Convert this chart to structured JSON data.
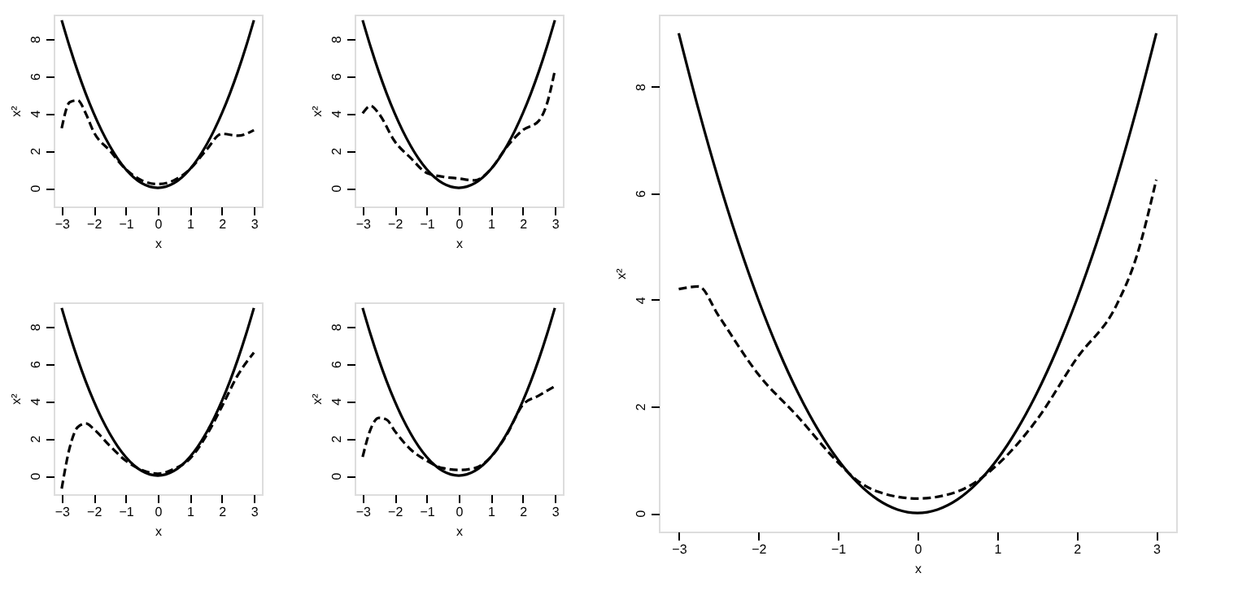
{
  "chart_data": [
    {
      "type": "line",
      "xlabel": "x",
      "ylabel": "x²",
      "xlim": [
        -3.25,
        3.25
      ],
      "ylim": [
        -1,
        9.3
      ],
      "xticks": [
        -3,
        -2,
        -1,
        0,
        1,
        2,
        3
      ],
      "yticks": [
        0,
        2,
        4,
        6,
        8
      ],
      "grid": false,
      "legend": false,
      "series": [
        {
          "color": "#000000",
          "line_style": "solid",
          "x": [
            -3,
            -2.75,
            -2.5,
            -2.25,
            -2,
            -1.75,
            -1.5,
            -1.25,
            -1,
            -0.75,
            -0.5,
            -0.25,
            0,
            0.25,
            0.5,
            0.75,
            1,
            1.25,
            1.5,
            1.75,
            2,
            2.25,
            2.5,
            2.75,
            3
          ],
          "values": [
            9,
            7.5625,
            6.25,
            5.0625,
            4,
            3.0625,
            2.25,
            1.5625,
            1,
            0.5625,
            0.25,
            0.0625,
            0,
            0.0625,
            0.25,
            0.5625,
            1,
            1.5625,
            2.25,
            3.0625,
            4,
            5.0625,
            6.25,
            7.5625,
            9
          ]
        },
        {
          "color": "#000000",
          "line_style": "dashed",
          "x": [
            -3,
            -2.75,
            -2.5,
            -2.25,
            -2,
            -1.5,
            -1,
            -0.5,
            0,
            0.5,
            1,
            1.5,
            2,
            2.5,
            3
          ],
          "values": [
            3.2,
            4.6,
            4.7,
            4.0,
            3.0,
            2.0,
            1.0,
            0.4,
            0.2,
            0.4,
            1.0,
            2.0,
            2.9,
            2.8,
            3.1
          ]
        }
      ]
    },
    {
      "type": "line",
      "xlabel": "x",
      "ylabel": "x²",
      "xlim": [
        -3.25,
        3.25
      ],
      "ylim": [
        -1,
        9.3
      ],
      "xticks": [
        -3,
        -2,
        -1,
        0,
        1,
        2,
        3
      ],
      "yticks": [
        0,
        2,
        4,
        6,
        8
      ],
      "grid": false,
      "legend": false,
      "series": [
        {
          "color": "#000000",
          "line_style": "solid",
          "x": [
            -3,
            -2.75,
            -2.5,
            -2.25,
            -2,
            -1.75,
            -1.5,
            -1.25,
            -1,
            -0.75,
            -0.5,
            -0.25,
            0,
            0.25,
            0.5,
            0.75,
            1,
            1.25,
            1.5,
            1.75,
            2,
            2.25,
            2.5,
            2.75,
            3
          ],
          "values": [
            9,
            7.5625,
            6.25,
            5.0625,
            4,
            3.0625,
            2.25,
            1.5625,
            1,
            0.5625,
            0.25,
            0.0625,
            0,
            0.0625,
            0.25,
            0.5625,
            1,
            1.5625,
            2.25,
            3.0625,
            4,
            5.0625,
            6.25,
            7.5625,
            9
          ]
        },
        {
          "color": "#000000",
          "line_style": "dashed",
          "x": [
            -3,
            -2.75,
            -2.5,
            -2,
            -1.5,
            -1,
            -0.5,
            0,
            0.5,
            1,
            1.5,
            2,
            2.5,
            2.75,
            3
          ],
          "values": [
            4.0,
            4.4,
            4.0,
            2.5,
            1.6,
            0.8,
            0.6,
            0.5,
            0.4,
            1.0,
            2.2,
            3.1,
            3.6,
            4.5,
            6.3
          ]
        }
      ]
    },
    {
      "type": "line",
      "xlabel": "x",
      "ylabel": "x²",
      "xlim": [
        -3.25,
        3.25
      ],
      "ylim": [
        -1,
        9.3
      ],
      "xticks": [
        -3,
        -2,
        -1,
        0,
        1,
        2,
        3
      ],
      "yticks": [
        0,
        2,
        4,
        6,
        8
      ],
      "grid": false,
      "legend": false,
      "series": [
        {
          "color": "#000000",
          "line_style": "solid",
          "x": [
            -3,
            -2.75,
            -2.5,
            -2.25,
            -2,
            -1.75,
            -1.5,
            -1.25,
            -1,
            -0.75,
            -0.5,
            -0.25,
            0,
            0.25,
            0.5,
            0.75,
            1,
            1.25,
            1.5,
            1.75,
            2,
            2.25,
            2.5,
            2.75,
            3
          ],
          "values": [
            9,
            7.5625,
            6.25,
            5.0625,
            4,
            3.0625,
            2.25,
            1.5625,
            1,
            0.5625,
            0.25,
            0.0625,
            0,
            0.0625,
            0.25,
            0.5625,
            1,
            1.5625,
            2.25,
            3.0625,
            4,
            5.0625,
            6.25,
            7.5625,
            9
          ]
        },
        {
          "color": "#000000",
          "line_style": "dashed",
          "x": [
            -3,
            -2.75,
            -2.5,
            -2.25,
            -2,
            -1.5,
            -1,
            -0.5,
            0,
            0.5,
            1,
            1.5,
            2,
            2.5,
            3
          ],
          "values": [
            -0.7,
            1.5,
            2.6,
            2.8,
            2.5,
            1.6,
            0.8,
            0.3,
            0.1,
            0.35,
            0.9,
            2.1,
            3.7,
            5.4,
            6.6
          ]
        }
      ]
    },
    {
      "type": "line",
      "xlabel": "x",
      "ylabel": "x²",
      "xlim": [
        -3.25,
        3.25
      ],
      "ylim": [
        -1,
        9.3
      ],
      "xticks": [
        -3,
        -2,
        -1,
        0,
        1,
        2,
        3
      ],
      "yticks": [
        0,
        2,
        4,
        6,
        8
      ],
      "grid": false,
      "legend": false,
      "series": [
        {
          "color": "#000000",
          "line_style": "solid",
          "x": [
            -3,
            -2.75,
            -2.5,
            -2.25,
            -2,
            -1.75,
            -1.5,
            -1.25,
            -1,
            -0.75,
            -0.5,
            -0.25,
            0,
            0.25,
            0.5,
            0.75,
            1,
            1.25,
            1.5,
            1.75,
            2,
            2.25,
            2.5,
            2.75,
            3
          ],
          "values": [
            9,
            7.5625,
            6.25,
            5.0625,
            4,
            3.0625,
            2.25,
            1.5625,
            1,
            0.5625,
            0.25,
            0.0625,
            0,
            0.0625,
            0.25,
            0.5625,
            1,
            1.5625,
            2.25,
            3.0625,
            4,
            5.0625,
            6.25,
            7.5625,
            9
          ]
        },
        {
          "color": "#000000",
          "line_style": "dashed",
          "x": [
            -3,
            -2.75,
            -2.5,
            -2.25,
            -2,
            -1.5,
            -1,
            -0.5,
            0,
            0.5,
            1,
            1.5,
            2,
            2.5,
            3
          ],
          "values": [
            1.0,
            2.5,
            3.1,
            3.0,
            2.4,
            1.4,
            0.8,
            0.4,
            0.3,
            0.4,
            1.0,
            2.2,
            3.8,
            4.3,
            4.8
          ]
        }
      ]
    },
    {
      "type": "line",
      "xlabel": "x",
      "ylabel": "x²",
      "xlim": [
        -3.25,
        3.25
      ],
      "ylim": [
        -0.35,
        9.35
      ],
      "xticks": [
        -3,
        -2,
        -1,
        0,
        1,
        2,
        3
      ],
      "yticks": [
        0,
        2,
        4,
        6,
        8
      ],
      "grid": false,
      "legend": false,
      "series": [
        {
          "color": "#000000",
          "line_style": "solid",
          "x": [
            -3,
            -2.75,
            -2.5,
            -2.25,
            -2,
            -1.75,
            -1.5,
            -1.25,
            -1,
            -0.75,
            -0.5,
            -0.25,
            0,
            0.25,
            0.5,
            0.75,
            1,
            1.25,
            1.5,
            1.75,
            2,
            2.25,
            2.5,
            2.75,
            3
          ],
          "values": [
            9,
            7.5625,
            6.25,
            5.0625,
            4,
            3.0625,
            2.25,
            1.5625,
            1,
            0.5625,
            0.25,
            0.0625,
            0,
            0.0625,
            0.25,
            0.5625,
            1,
            1.5625,
            2.25,
            3.0625,
            4,
            5.0625,
            6.25,
            7.5625,
            9
          ]
        },
        {
          "color": "#000000",
          "line_style": "dashed",
          "x": [
            -3,
            -2.75,
            -2.5,
            -2,
            -1.5,
            -1,
            -0.75,
            -0.5,
            0,
            0.5,
            1,
            1.5,
            2,
            2.5,
            2.75,
            3
          ],
          "values": [
            4.2,
            4.25,
            3.7,
            2.6,
            1.8,
            0.95,
            0.6,
            0.4,
            0.27,
            0.4,
            0.9,
            1.75,
            2.9,
            3.9,
            4.8,
            6.25
          ]
        }
      ]
    }
  ]
}
